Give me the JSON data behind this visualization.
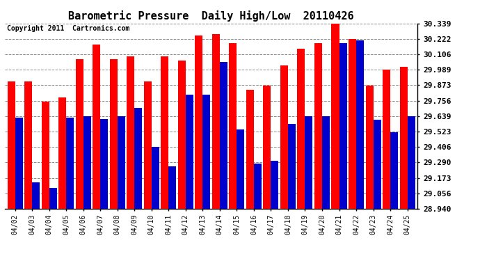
{
  "title": "Barometric Pressure  Daily High/Low  20110426",
  "copyright": "Copyright 2011  Cartronics.com",
  "dates": [
    "04/02",
    "04/03",
    "04/04",
    "04/05",
    "04/06",
    "04/07",
    "04/08",
    "04/09",
    "04/10",
    "04/11",
    "04/12",
    "04/13",
    "04/14",
    "04/15",
    "04/16",
    "04/17",
    "04/18",
    "04/19",
    "04/20",
    "04/21",
    "04/22",
    "04/23",
    "04/24",
    "04/25"
  ],
  "highs": [
    29.9,
    29.9,
    29.75,
    29.78,
    30.07,
    30.18,
    30.07,
    30.09,
    29.9,
    30.09,
    30.06,
    30.25,
    30.26,
    30.19,
    29.84,
    29.87,
    30.02,
    30.15,
    30.19,
    30.34,
    30.22,
    29.87,
    29.99,
    30.01
  ],
  "lows": [
    29.63,
    29.14,
    29.1,
    29.63,
    29.64,
    29.62,
    29.64,
    29.7,
    29.41,
    29.26,
    29.8,
    29.8,
    30.05,
    29.54,
    29.28,
    29.3,
    29.58,
    29.64,
    29.64,
    30.19,
    30.21,
    29.61,
    29.52,
    29.64
  ],
  "ymin": 28.94,
  "ymax": 30.339,
  "yticks": [
    28.94,
    29.056,
    29.173,
    29.29,
    29.406,
    29.523,
    29.639,
    29.756,
    29.873,
    29.989,
    30.106,
    30.222,
    30.339
  ],
  "bar_color_high": "#ff0000",
  "bar_color_low": "#0000cc",
  "background_color": "#ffffff",
  "grid_color": "#888888",
  "title_fontsize": 11,
  "copyright_fontsize": 7
}
